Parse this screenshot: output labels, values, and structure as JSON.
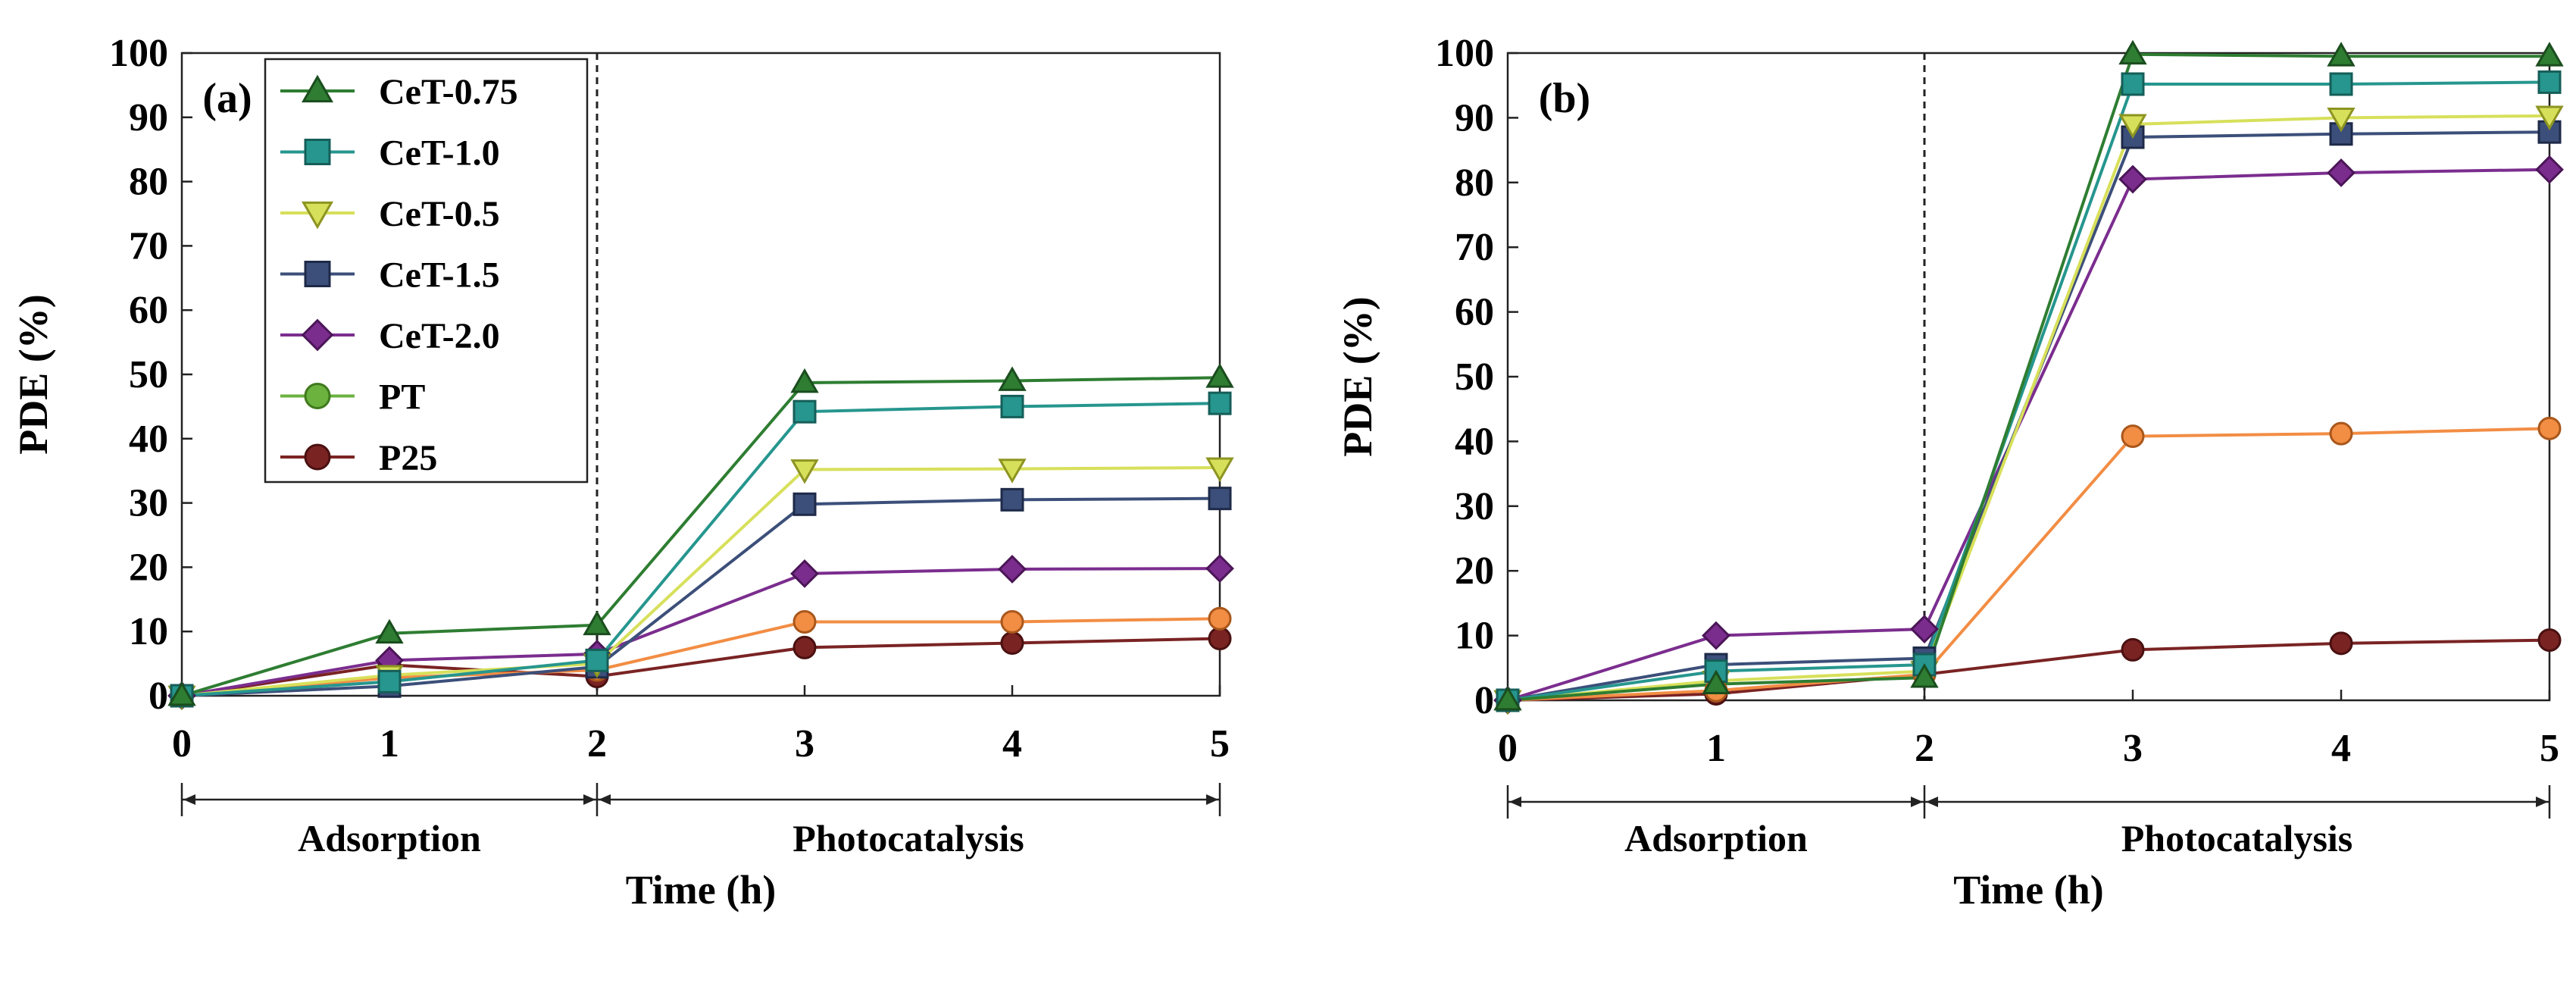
{
  "figure": {
    "background": "#ffffff"
  },
  "legend": {
    "entries": [
      {
        "name": "CeT-0.75",
        "marker": "triangle-up",
        "color": "#2e7d32",
        "edge": "#1b4d1e"
      },
      {
        "name": "CeT-1.0",
        "marker": "square",
        "color": "#26968e",
        "edge": "#165e59"
      },
      {
        "name": "CeT-0.5",
        "marker": "triangle-down",
        "color": "#d7e05a",
        "edge": "#8d9421"
      },
      {
        "name": "CeT-1.5",
        "marker": "square",
        "color": "#3c4f7a",
        "edge": "#1e2a48"
      },
      {
        "name": "CeT-2.0",
        "marker": "diamond",
        "color": "#7b2d8e",
        "edge": "#4b1657"
      },
      {
        "name": "PT",
        "marker": "circle",
        "color": "#f28d44",
        "edge": "#a9571b",
        "legend_color": "#6bb23f",
        "legend_edge": "#3f7a1d"
      },
      {
        "name": "P25",
        "marker": "circle",
        "color": "#7a2323",
        "edge": "#4a1010"
      }
    ]
  },
  "chart_data": [
    {
      "type": "line",
      "panel_label": "(a)",
      "xlabel": "Time (h)",
      "ylabel": "PDE (%)",
      "x": [
        0,
        1,
        2,
        3,
        4,
        5
      ],
      "xlim": [
        0,
        5
      ],
      "ylim": [
        0,
        100
      ],
      "xticks": [
        0,
        1,
        2,
        3,
        4,
        5
      ],
      "yticks": [
        0,
        10,
        20,
        30,
        40,
        50,
        60,
        70,
        80,
        90,
        100
      ],
      "divider_x": 2,
      "phases": [
        {
          "label": "Adsorption",
          "from": 0,
          "to": 2
        },
        {
          "label": "Photocatalysis",
          "from": 2,
          "to": 5
        }
      ],
      "show_legend": true,
      "series": [
        {
          "name": "CeT-0.75",
          "values": [
            0,
            9.7,
            11.0,
            48.7,
            49.0,
            49.5
          ]
        },
        {
          "name": "CeT-1.0",
          "values": [
            0,
            2.2,
            5.5,
            44.2,
            45.0,
            45.5
          ]
        },
        {
          "name": "CeT-0.5",
          "values": [
            0,
            3.2,
            5.0,
            35.2,
            35.3,
            35.5
          ]
        },
        {
          "name": "CeT-1.5",
          "values": [
            0,
            1.5,
            4.5,
            29.8,
            30.5,
            30.7
          ]
        },
        {
          "name": "CeT-2.0",
          "values": [
            0,
            5.5,
            6.5,
            19.0,
            19.7,
            19.8
          ]
        },
        {
          "name": "PT",
          "values": [
            0,
            2.8,
            4.0,
            11.5,
            11.5,
            12.0
          ]
        },
        {
          "name": "P25",
          "values": [
            0,
            4.8,
            3.0,
            7.5,
            8.2,
            8.9
          ]
        }
      ]
    },
    {
      "type": "line",
      "panel_label": "(b)",
      "xlabel": "Time (h)",
      "ylabel": "PDE (%)",
      "x": [
        0,
        1,
        2,
        3,
        4,
        5
      ],
      "xlim": [
        0,
        5
      ],
      "ylim": [
        0,
        100
      ],
      "xticks": [
        0,
        1,
        2,
        3,
        4,
        5
      ],
      "yticks": [
        0,
        10,
        20,
        30,
        40,
        50,
        60,
        70,
        80,
        90,
        100
      ],
      "divider_x": 2,
      "phases": [
        {
          "label": "Adsorption",
          "from": 0,
          "to": 2
        },
        {
          "label": "Photocatalysis",
          "from": 2,
          "to": 5
        }
      ],
      "show_legend": false,
      "series": [
        {
          "name": "CeT-0.75",
          "values": [
            0,
            2.5,
            3.5,
            99.8,
            99.5,
            99.5
          ]
        },
        {
          "name": "CeT-1.0",
          "values": [
            0,
            4.5,
            5.5,
            95.2,
            95.2,
            95.5
          ]
        },
        {
          "name": "CeT-0.5",
          "values": [
            0,
            3.0,
            4.5,
            89.0,
            90.0,
            90.3
          ]
        },
        {
          "name": "CeT-1.5",
          "values": [
            0,
            5.5,
            6.5,
            87.0,
            87.5,
            87.8
          ]
        },
        {
          "name": "CeT-2.0",
          "values": [
            0,
            10.0,
            11.0,
            80.5,
            81.5,
            82.0
          ]
        },
        {
          "name": "PT",
          "values": [
            0,
            1.5,
            4.0,
            40.8,
            41.2,
            42.0
          ]
        },
        {
          "name": "P25",
          "values": [
            0,
            1.0,
            4.0,
            7.8,
            8.8,
            9.3
          ]
        }
      ]
    }
  ]
}
